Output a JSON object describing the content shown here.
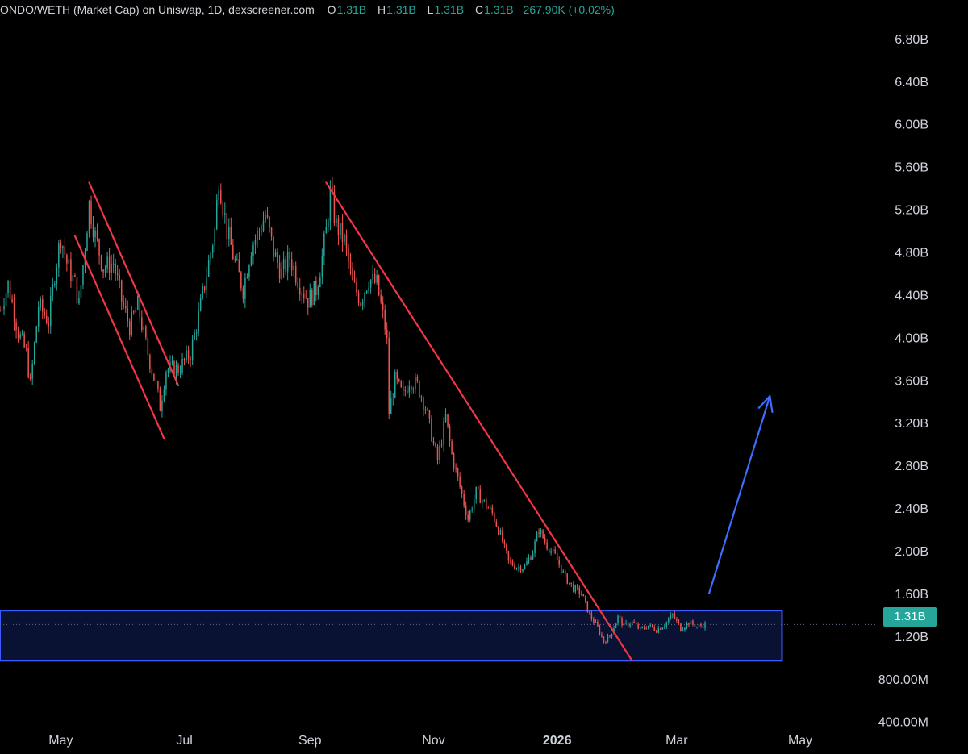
{
  "legend": {
    "symbol": "ONDO/WETH (Market Cap) on Uniswap, 1D, dexscreener.com",
    "open_key": "O",
    "open": "1.31B",
    "high_key": "H",
    "high": "1.31B",
    "low_key": "L",
    "low": "1.31B",
    "close_key": "C",
    "close": "1.31B",
    "change": "267.90K (+0.02%)"
  },
  "price_tag": "1.31B",
  "colors": {
    "background": "#000000",
    "up": "#26a69a",
    "down": "#ef5350",
    "axis_text": "#d1d4dc",
    "trendline": "#f23645",
    "zone_border": "#3d5afe",
    "zone_fill": "#0a1233",
    "arrow": "#3d6eff"
  },
  "chart_data": {
    "type": "candlestick",
    "title": "ONDO/WETH (Market Cap) on Uniswap, 1D, dexscreener.com",
    "y_ticks": [
      "6.80B",
      "6.40B",
      "6.00B",
      "5.60B",
      "5.20B",
      "4.80B",
      "4.40B",
      "4.00B",
      "3.60B",
      "3.20B",
      "2.80B",
      "2.40B",
      "2.00B",
      "1.60B",
      "1.20B",
      "800.00M",
      "400.00M"
    ],
    "y_tick_values": [
      6.8,
      6.4,
      6.0,
      5.6,
      5.2,
      4.8,
      4.4,
      4.0,
      3.6,
      3.2,
      2.8,
      2.4,
      2.0,
      1.6,
      1.2,
      0.8,
      0.4
    ],
    "y_unit": "B",
    "x_ticks": [
      "May",
      "Jul",
      "Sep",
      "Nov",
      "2026",
      "Mar",
      "May"
    ],
    "x_tick_dates": [
      "2025-05-01",
      "2025-07-01",
      "2025-09-01",
      "2025-11-01",
      "2026-01-01",
      "2026-03-01",
      "2026-05-01"
    ],
    "x_range": [
      "2025-04-01",
      "2026-06-07"
    ],
    "y_range": [
      0.33,
      6.98
    ],
    "last_price": 1.31,
    "price_keypoints": [
      [
        "2025-04-01",
        4.25
      ],
      [
        "2025-04-05",
        4.5
      ],
      [
        "2025-04-10",
        4.05
      ],
      [
        "2025-04-14",
        3.85
      ],
      [
        "2025-04-16",
        3.55
      ],
      [
        "2025-04-20",
        4.3
      ],
      [
        "2025-04-25",
        4.15
      ],
      [
        "2025-04-28",
        4.6
      ],
      [
        "2025-05-01",
        4.95
      ],
      [
        "2025-05-04",
        4.7
      ],
      [
        "2025-05-08",
        4.5
      ],
      [
        "2025-05-10",
        4.3
      ],
      [
        "2025-05-15",
        5.25
      ],
      [
        "2025-05-18",
        4.95
      ],
      [
        "2025-05-22",
        4.65
      ],
      [
        "2025-05-27",
        4.7
      ],
      [
        "2025-05-31",
        4.35
      ],
      [
        "2025-06-04",
        4.1
      ],
      [
        "2025-06-08",
        4.3
      ],
      [
        "2025-06-13",
        3.85
      ],
      [
        "2025-06-17",
        3.55
      ],
      [
        "2025-06-19",
        3.35
      ],
      [
        "2025-06-22",
        3.7
      ],
      [
        "2025-06-28",
        3.7
      ],
      [
        "2025-07-04",
        3.85
      ],
      [
        "2025-07-08",
        4.2
      ],
      [
        "2025-07-12",
        4.6
      ],
      [
        "2025-07-16",
        5.0
      ],
      [
        "2025-07-18",
        5.5
      ],
      [
        "2025-07-22",
        5.0
      ],
      [
        "2025-07-26",
        4.7
      ],
      [
        "2025-07-30",
        4.45
      ],
      [
        "2025-08-03",
        4.85
      ],
      [
        "2025-08-07",
        5.0
      ],
      [
        "2025-08-10",
        5.15
      ],
      [
        "2025-08-14",
        4.8
      ],
      [
        "2025-08-18",
        4.6
      ],
      [
        "2025-08-22",
        4.75
      ],
      [
        "2025-08-27",
        4.5
      ],
      [
        "2025-08-31",
        4.35
      ],
      [
        "2025-09-04",
        4.45
      ],
      [
        "2025-09-07",
        4.75
      ],
      [
        "2025-09-09",
        5.0
      ],
      [
        "2025-09-11",
        5.35
      ],
      [
        "2025-09-14",
        5.05
      ],
      [
        "2025-09-18",
        4.9
      ],
      [
        "2025-09-22",
        4.5
      ],
      [
        "2025-09-26",
        4.35
      ],
      [
        "2025-09-30",
        4.55
      ],
      [
        "2025-10-04",
        4.5
      ],
      [
        "2025-10-08",
        4.1
      ],
      [
        "2025-10-09",
        3.95
      ],
      [
        "2025-10-10",
        3.3
      ],
      [
        "2025-10-13",
        3.6
      ],
      [
        "2025-10-17",
        3.45
      ],
      [
        "2025-10-20",
        3.6
      ],
      [
        "2025-10-24",
        3.55
      ],
      [
        "2025-10-28",
        3.35
      ],
      [
        "2025-11-01",
        3.0
      ],
      [
        "2025-11-03",
        2.85
      ],
      [
        "2025-11-07",
        3.25
      ],
      [
        "2025-11-10",
        2.9
      ],
      [
        "2025-11-14",
        2.6
      ],
      [
        "2025-11-18",
        2.3
      ],
      [
        "2025-11-22",
        2.55
      ],
      [
        "2025-11-26",
        2.45
      ],
      [
        "2025-11-30",
        2.35
      ],
      [
        "2025-12-04",
        2.15
      ],
      [
        "2025-12-08",
        1.9
      ],
      [
        "2025-12-12",
        1.85
      ],
      [
        "2025-12-16",
        1.85
      ],
      [
        "2025-12-20",
        2.0
      ],
      [
        "2025-12-23",
        2.2
      ],
      [
        "2025-12-27",
        2.05
      ],
      [
        "2025-12-31",
        1.95
      ],
      [
        "2026-01-05",
        1.75
      ],
      [
        "2026-01-09",
        1.65
      ],
      [
        "2026-01-13",
        1.6
      ],
      [
        "2026-01-17",
        1.4
      ],
      [
        "2026-01-21",
        1.28
      ],
      [
        "2026-01-24",
        1.15
      ],
      [
        "2026-01-27",
        1.2
      ],
      [
        "2026-01-31",
        1.38
      ],
      [
        "2026-02-03",
        1.3
      ],
      [
        "2026-02-07",
        1.33
      ],
      [
        "2026-02-11",
        1.26
      ],
      [
        "2026-02-15",
        1.3
      ],
      [
        "2026-02-19",
        1.26
      ],
      [
        "2026-02-23",
        1.31
      ],
      [
        "2026-02-27",
        1.4
      ],
      [
        "2026-03-03",
        1.27
      ],
      [
        "2026-03-07",
        1.33
      ],
      [
        "2026-03-11",
        1.29
      ],
      [
        "2026-03-15",
        1.31
      ]
    ],
    "annotations": [
      {
        "kind": "trendline",
        "color": "#f23645",
        "from": [
          "2025-05-15",
          5.45
        ],
        "to": [
          "2025-06-28",
          3.55
        ]
      },
      {
        "kind": "trendline",
        "color": "#f23645",
        "from": [
          "2025-05-08",
          4.95
        ],
        "to": [
          "2025-06-21",
          3.05
        ]
      },
      {
        "kind": "trendline",
        "color": "#f23645",
        "from": [
          "2025-09-09",
          5.45
        ],
        "to": [
          "2026-02-07",
          0.97
        ]
      },
      {
        "kind": "rectangle",
        "color": "#3d5afe",
        "from": [
          "2025-04-01",
          1.44
        ],
        "to": [
          "2026-04-22",
          0.97
        ]
      },
      {
        "kind": "arrow",
        "color": "#3d6eff",
        "from": [
          "2026-03-17",
          1.6
        ],
        "to": [
          "2026-04-16",
          3.45
        ]
      }
    ]
  }
}
